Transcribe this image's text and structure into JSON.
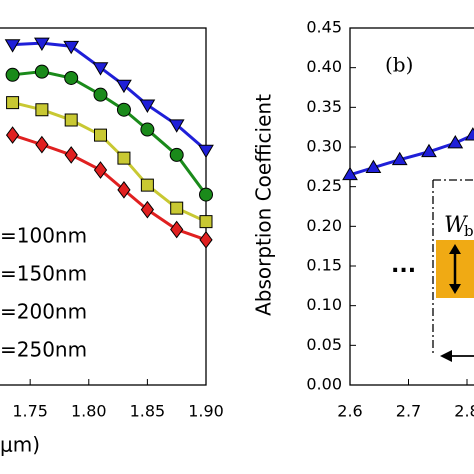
{
  "chart_data": [
    {
      "type": "line",
      "x": [
        1.735,
        1.76,
        1.785,
        1.81,
        1.83,
        1.85,
        1.875,
        1.9
      ],
      "series": [
        {
          "name": "=100nm",
          "color": "#1f1fd8",
          "marker": "triangle-down",
          "values": [
            0.429,
            0.431,
            0.427,
            0.4,
            0.378,
            0.353,
            0.328,
            0.296
          ]
        },
        {
          "name": "=150nm",
          "color": "#1a8a1a",
          "marker": "circle",
          "values": [
            0.391,
            0.395,
            0.387,
            0.366,
            0.347,
            0.322,
            0.29,
            0.24
          ]
        },
        {
          "name": "=200nm",
          "color": "#c8c832",
          "marker": "square",
          "values": [
            0.356,
            0.347,
            0.334,
            0.315,
            0.286,
            0.252,
            0.223,
            0.206
          ]
        },
        {
          "name": "=250nm",
          "color": "#e02020",
          "marker": "diamond",
          "values": [
            0.315,
            0.303,
            0.29,
            0.271,
            0.246,
            0.221,
            0.196,
            0.183
          ]
        }
      ],
      "xlim": [
        1.72,
        1.9
      ],
      "xticks": [
        {
          "value": 1.75,
          "label": "1.75"
        },
        {
          "value": 1.8,
          "label": "1.80"
        },
        {
          "value": 1.85,
          "label": "1.85"
        },
        {
          "value": 1.9,
          "label": "1.90"
        }
      ],
      "ylim": [
        0,
        0.45
      ],
      "xlabel": "μm)"
    },
    {
      "type": "line",
      "x": [
        2.6,
        2.64,
        2.685,
        2.735,
        2.78,
        2.81
      ],
      "series": [
        {
          "color": "#1f1fd8",
          "marker": "triangle-up",
          "values": [
            0.265,
            0.274,
            0.284,
            0.294,
            0.305,
            0.315
          ]
        }
      ],
      "xlim": [
        2.6,
        2.9
      ],
      "xticks": [
        2.6,
        2.7,
        2.8
      ],
      "ylim": [
        0,
        0.45
      ],
      "yticks": [
        {
          "value": 0,
          "label": "0.00"
        },
        {
          "value": 0.05,
          "label": "0.05"
        },
        {
          "value": 0.1,
          "label": "0.10"
        },
        {
          "value": 0.15,
          "label": "0.15"
        },
        {
          "value": 0.2,
          "label": "0.20"
        },
        {
          "value": 0.25,
          "label": "0.25"
        },
        {
          "value": 0.3,
          "label": "0.30"
        },
        {
          "value": 0.35,
          "label": "0.35"
        },
        {
          "value": 0.4,
          "label": "0.40"
        },
        {
          "value": 0.45,
          "label": "0.45"
        }
      ],
      "ylabel": "Absorption Coefficient",
      "annotations": [
        "(b)",
        "W",
        "b",
        "..."
      ]
    }
  ]
}
